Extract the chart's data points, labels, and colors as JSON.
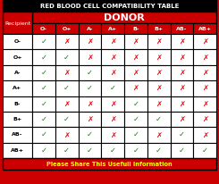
{
  "title": "RED BLOOD CELL COMPATIBILITY TABLE",
  "donor_label": "DONOR",
  "recipient_label": "Recipient",
  "footer": "Please Share This Usefull Information",
  "donors": [
    "O-",
    "O+",
    "A-",
    "A+",
    "B-",
    "B+",
    "AB-",
    "AB+"
  ],
  "recipients": [
    "O-",
    "O+",
    "A-",
    "A+",
    "B-",
    "B+",
    "AB-",
    "AB+"
  ],
  "compatibility": [
    [
      1,
      0,
      0,
      0,
      0,
      0,
      0,
      0
    ],
    [
      1,
      1,
      0,
      0,
      0,
      0,
      0,
      0
    ],
    [
      1,
      0,
      1,
      0,
      0,
      0,
      0,
      0
    ],
    [
      1,
      1,
      1,
      1,
      0,
      0,
      0,
      0
    ],
    [
      1,
      0,
      0,
      0,
      1,
      0,
      0,
      0
    ],
    [
      1,
      1,
      0,
      0,
      1,
      1,
      0,
      0
    ],
    [
      1,
      0,
      1,
      0,
      1,
      0,
      1,
      0
    ],
    [
      1,
      1,
      1,
      1,
      1,
      1,
      1,
      1
    ]
  ],
  "bg_red": "#CC0000",
  "check_color": "#1a7a1a",
  "cross_color": "#EE0000",
  "title_bg": "#000000",
  "title_fg": "#FFFFFF",
  "donor_bg": "#CC0000",
  "donor_fg": "#FFFFFF",
  "header_col_bg": "#CC0000",
  "header_col_fg": "#FFFFFF",
  "recip_header_bg": "#CC0000",
  "recip_header_fg": "#FFFFFF",
  "cell_bg": "#FFFFFF",
  "cell_fg": "#000000",
  "recip_cell_bg": "#FFFFFF",
  "recip_cell_fg": "#000000",
  "border_color": "#000000",
  "footer_bg": "#CC0000",
  "footer_fg": "#FFFF00",
  "title_fontsize": 5.0,
  "donor_fontsize": 8.0,
  "col_header_fontsize": 4.5,
  "recipient_label_fontsize": 4.5,
  "recip_fontsize": 4.5,
  "symbol_fontsize": 6.0,
  "footer_fontsize": 4.8
}
